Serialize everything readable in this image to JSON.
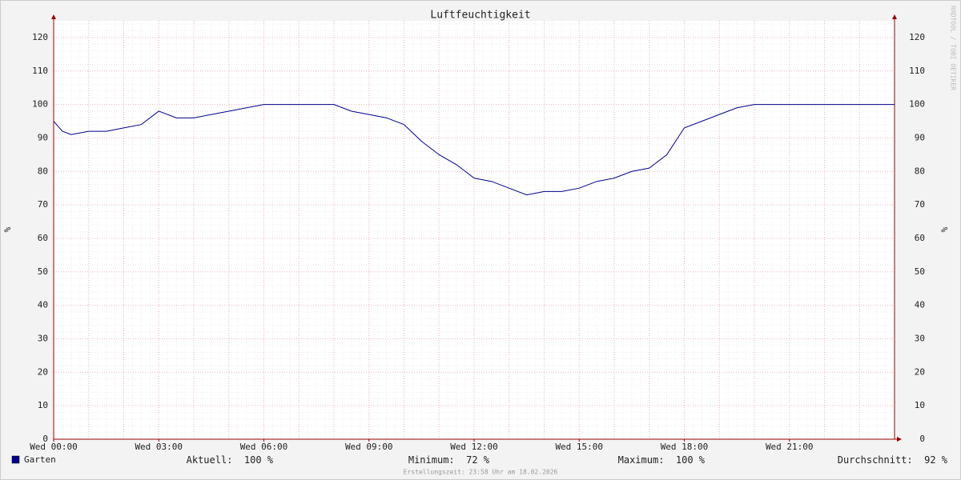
{
  "chart_data": {
    "type": "line",
    "title": "Luftfeuchtigkeit",
    "ylabel": "%",
    "x": [
      0,
      0.25,
      0.5,
      1,
      1.5,
      2,
      2.5,
      3,
      3.5,
      4,
      4.5,
      5,
      5.5,
      6,
      6.5,
      7,
      7.5,
      8,
      8.5,
      9,
      9.5,
      10,
      10.5,
      11,
      11.5,
      12,
      12.5,
      13,
      13.5,
      14,
      14.5,
      15,
      15.5,
      16,
      16.5,
      17,
      17.5,
      18,
      18.5,
      19,
      19.5,
      20,
      21,
      22,
      23,
      24
    ],
    "series": [
      {
        "name": "Garten",
        "color": "#00008b",
        "values": [
          95,
          92,
          91,
          92,
          92,
          93,
          94,
          98,
          96,
          96,
          97,
          98,
          99,
          100,
          100,
          100,
          100,
          100,
          98,
          97,
          96,
          94,
          89,
          85,
          82,
          78,
          77,
          75,
          73,
          74,
          74,
          75,
          77,
          78,
          80,
          81,
          85,
          93,
          95,
          97,
          99,
          100,
          100,
          100,
          100,
          100
        ]
      }
    ],
    "xlim": [
      0,
      24
    ],
    "xticks": [
      {
        "value": 0,
        "label": "Wed 00:00"
      },
      {
        "value": 3,
        "label": "Wed 03:00"
      },
      {
        "value": 6,
        "label": "Wed 06:00"
      },
      {
        "value": 9,
        "label": "Wed 09:00"
      },
      {
        "value": 12,
        "label": "Wed 12:00"
      },
      {
        "value": 15,
        "label": "Wed 15:00"
      },
      {
        "value": 18,
        "label": "Wed 18:00"
      },
      {
        "value": 21,
        "label": "Wed 21:00"
      }
    ],
    "ylim": [
      0,
      125
    ],
    "yticks": [
      0,
      10,
      20,
      30,
      40,
      50,
      60,
      70,
      80,
      90,
      100,
      110,
      120
    ],
    "grid": true,
    "stats": [
      {
        "label": "Aktuell:",
        "value": 100,
        "unit": "%"
      },
      {
        "label": "Minimum:",
        "value": 72,
        "unit": "%"
      },
      {
        "label": "Maximum:",
        "value": 100,
        "unit": "%"
      },
      {
        "label": "Durchschnitt:",
        "value": 92,
        "unit": "%"
      }
    ],
    "watermark": "RRDTOOL / TOBI OETIKER",
    "footer": "Erstellungszeit: 23:58 Uhr am 18.02.2026"
  }
}
